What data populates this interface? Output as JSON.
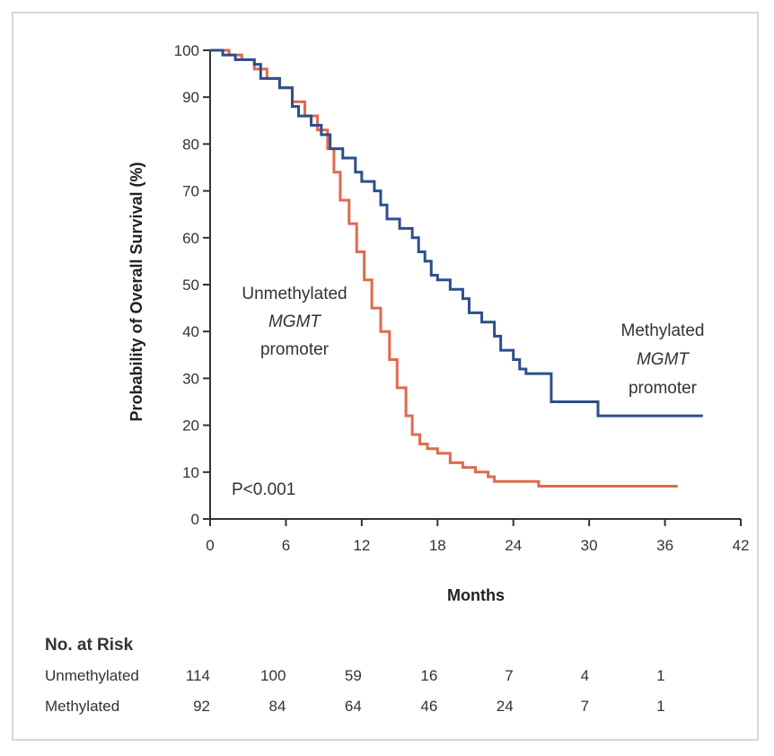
{
  "chart_data": {
    "type": "line",
    "ylabel": "Probability of Overall Survival (%)",
    "xlabel": "Months",
    "xlim": [
      0,
      42
    ],
    "ylim": [
      0,
      100
    ],
    "x_ticks": [
      0,
      6,
      12,
      18,
      24,
      30,
      36,
      42
    ],
    "y_ticks": [
      0,
      10,
      20,
      30,
      40,
      50,
      60,
      70,
      80,
      90,
      100
    ],
    "grid": false,
    "annotations": {
      "unmethylated_lines": [
        "Unmethylated",
        "MGMT",
        "promoter"
      ],
      "methylated_lines": [
        "Methylated",
        "MGMT",
        "promoter"
      ],
      "pvalue": "P<0.001"
    },
    "colors": {
      "unmethylated": "#e06a4c",
      "methylated": "#2c4f8c"
    },
    "series": [
      {
        "key": "unmethylated",
        "points": [
          [
            0,
            100
          ],
          [
            1.5,
            99
          ],
          [
            2.5,
            98
          ],
          [
            3.5,
            96
          ],
          [
            4.5,
            94
          ],
          [
            5.5,
            92
          ],
          [
            6.5,
            89
          ],
          [
            7.5,
            86
          ],
          [
            8.5,
            83
          ],
          [
            9.3,
            79
          ],
          [
            9.8,
            74
          ],
          [
            10.3,
            68
          ],
          [
            11,
            63
          ],
          [
            11.6,
            57
          ],
          [
            12.2,
            51
          ],
          [
            12.8,
            45
          ],
          [
            13.5,
            40
          ],
          [
            14.2,
            34
          ],
          [
            14.8,
            28
          ],
          [
            15.5,
            22
          ],
          [
            16,
            18
          ],
          [
            16.6,
            16
          ],
          [
            17.2,
            15
          ],
          [
            18,
            14
          ],
          [
            19,
            12
          ],
          [
            20,
            11
          ],
          [
            21,
            10
          ],
          [
            22,
            9
          ],
          [
            22.5,
            8
          ],
          [
            24,
            8
          ],
          [
            25,
            8
          ],
          [
            26,
            7
          ],
          [
            30,
            7
          ],
          [
            34,
            7
          ],
          [
            37,
            7
          ]
        ]
      },
      {
        "key": "methylated",
        "points": [
          [
            0,
            100
          ],
          [
            1,
            99
          ],
          [
            2,
            98
          ],
          [
            3.5,
            97
          ],
          [
            4,
            94
          ],
          [
            5.5,
            92
          ],
          [
            6.5,
            88
          ],
          [
            7,
            86
          ],
          [
            8,
            84
          ],
          [
            8.8,
            82
          ],
          [
            9.5,
            79
          ],
          [
            10.5,
            77
          ],
          [
            11.5,
            74
          ],
          [
            12,
            72
          ],
          [
            13,
            70
          ],
          [
            13.5,
            67
          ],
          [
            14,
            64
          ],
          [
            15,
            62
          ],
          [
            16,
            60
          ],
          [
            16.5,
            57
          ],
          [
            17,
            55
          ],
          [
            17.5,
            52
          ],
          [
            18,
            51
          ],
          [
            19,
            49
          ],
          [
            20,
            47
          ],
          [
            20.5,
            44
          ],
          [
            21.5,
            42
          ],
          [
            22.5,
            39
          ],
          [
            23,
            36
          ],
          [
            24,
            34
          ],
          [
            24.5,
            32
          ],
          [
            25,
            31
          ],
          [
            26.5,
            31
          ],
          [
            27,
            25
          ],
          [
            30.5,
            25
          ],
          [
            30.7,
            22
          ],
          [
            33,
            22
          ],
          [
            36,
            22
          ],
          [
            39,
            22
          ]
        ]
      }
    ],
    "risk_table": {
      "title": "No. at Risk",
      "rows": [
        {
          "label": "Unmethylated",
          "values": [
            "114",
            "100",
            "59",
            "16",
            "7",
            "4",
            "1"
          ]
        },
        {
          "label": "Methylated",
          "values": [
            "92",
            "84",
            "64",
            "46",
            "24",
            "7",
            "1"
          ]
        }
      ]
    }
  }
}
